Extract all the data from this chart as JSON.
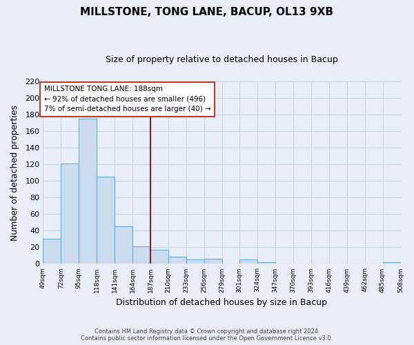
{
  "title": "MILLSTONE, TONG LANE, BACUP, OL13 9XB",
  "subtitle": "Size of property relative to detached houses in Bacup",
  "xlabel": "Distribution of detached houses by size in Bacup",
  "ylabel": "Number of detached properties",
  "bar_color": "#ccdcee",
  "bar_edge_color": "#6aaad4",
  "bin_labels": [
    "49sqm",
    "72sqm",
    "95sqm",
    "118sqm",
    "141sqm",
    "164sqm",
    "187sqm",
    "210sqm",
    "233sqm",
    "256sqm",
    "279sqm",
    "301sqm",
    "324sqm",
    "347sqm",
    "370sqm",
    "393sqm",
    "416sqm",
    "439sqm",
    "462sqm",
    "485sqm",
    "508sqm"
  ],
  "bar_values": [
    30,
    121,
    175,
    105,
    45,
    21,
    17,
    9,
    5,
    6,
    0,
    5,
    2,
    0,
    0,
    0,
    0,
    0,
    0,
    2
  ],
  "ylim": [
    0,
    220
  ],
  "yticks": [
    0,
    20,
    40,
    60,
    80,
    100,
    120,
    140,
    160,
    180,
    200,
    220
  ],
  "vline_color": "#8b1a1a",
  "annotation_line1": "MILLSTONE TONG LANE: 188sqm",
  "annotation_line2": "← 92% of detached houses are smaller (496)",
  "annotation_line3": "7% of semi-detached houses are larger (40) →",
  "footer_line1": "Contains HM Land Registry data © Crown copyright and database right 2024.",
  "footer_line2": "Contains public sector information licensed under the Open Government Licence v3.0.",
  "bg_color": "#e8eef8",
  "plot_bg_color": "#e8eef8",
  "grid_color": "#c8d0dc",
  "bin_width": 23
}
